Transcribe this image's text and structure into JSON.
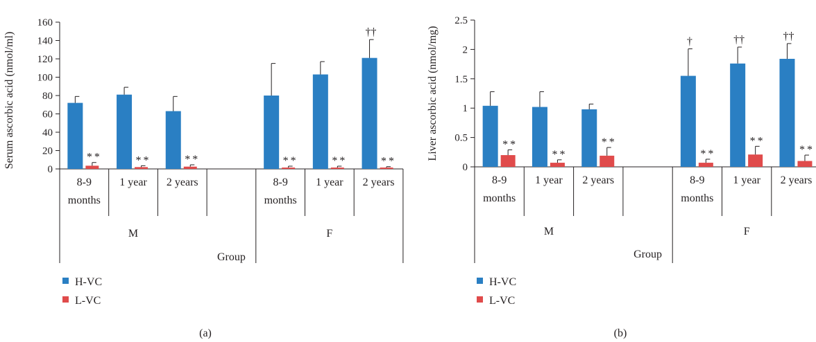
{
  "colors": {
    "hvc": "#2a7fc3",
    "lvc": "#e04b4b",
    "axis": "#231f20"
  },
  "chart_data": [
    {
      "panel_label": "(a)",
      "type": "bar",
      "ylabel": "Serum ascorbic acid (nmol/ml)",
      "xlabel": "Group",
      "ylim": [
        0,
        160
      ],
      "yticks": [
        "0",
        "20",
        "40",
        "60",
        "80",
        "100",
        "120",
        "140",
        "160"
      ],
      "ytick_values": [
        0,
        20,
        40,
        60,
        80,
        100,
        120,
        140,
        160
      ],
      "categories": [
        {
          "group": "M",
          "line1": "8-9",
          "line2": "months"
        },
        {
          "group": "M",
          "line1": "1 year",
          "line2": ""
        },
        {
          "group": "M",
          "line1": "2 years",
          "line2": ""
        },
        {
          "group": "",
          "line1": "",
          "line2": ""
        },
        {
          "group": "F",
          "line1": "8-9",
          "line2": "months"
        },
        {
          "group": "F",
          "line1": "1 year",
          "line2": ""
        },
        {
          "group": "F",
          "line1": "2 years",
          "line2": ""
        }
      ],
      "groups": [
        "M",
        "F"
      ],
      "series": [
        {
          "name": "H-VC",
          "values": [
            72,
            81,
            63,
            null,
            80,
            103,
            121
          ],
          "errors": [
            7,
            8,
            16,
            null,
            35,
            14,
            20
          ],
          "annotations": [
            "",
            "",
            "",
            "",
            "",
            "",
            "††"
          ]
        },
        {
          "name": "L-VC",
          "values": [
            3.5,
            2,
            2.5,
            null,
            1.5,
            1.5,
            1.5
          ],
          "errors": [
            3.5,
            1.5,
            2,
            null,
            1.5,
            1.5,
            1
          ],
          "annotations": [
            "**",
            "**",
            "**",
            "",
            "**",
            "**",
            "**"
          ]
        }
      ],
      "legend_position": "bottom-left"
    },
    {
      "panel_label": "(b)",
      "type": "bar",
      "ylabel": "Liver ascorbic acid (nmol/mg)",
      "xlabel": "Group",
      "ylim": [
        0,
        2.5
      ],
      "yticks": [
        "0",
        "0.5",
        "1",
        "1.5",
        "2",
        "2.5"
      ],
      "ytick_values": [
        0,
        0.5,
        1,
        1.5,
        2,
        2.5
      ],
      "categories": [
        {
          "group": "M",
          "line1": "8-9",
          "line2": "months"
        },
        {
          "group": "M",
          "line1": "1 year",
          "line2": ""
        },
        {
          "group": "M",
          "line1": "2 years",
          "line2": ""
        },
        {
          "group": "",
          "line1": "",
          "line2": ""
        },
        {
          "group": "F",
          "line1": "8-9",
          "line2": "months"
        },
        {
          "group": "F",
          "line1": "1 year",
          "line2": ""
        },
        {
          "group": "F",
          "line1": "2 years",
          "line2": ""
        }
      ],
      "groups": [
        "M",
        "F"
      ],
      "series": [
        {
          "name": "H-VC",
          "values": [
            1.04,
            1.02,
            0.98,
            null,
            1.55,
            1.76,
            1.84
          ],
          "errors": [
            0.24,
            0.26,
            0.09,
            null,
            0.46,
            0.28,
            0.26
          ],
          "annotations": [
            "",
            "",
            "",
            "",
            "†",
            "††",
            "††"
          ]
        },
        {
          "name": "L-VC",
          "values": [
            0.2,
            0.07,
            0.19,
            null,
            0.07,
            0.21,
            0.1
          ],
          "errors": [
            0.09,
            0.05,
            0.14,
            null,
            0.06,
            0.14,
            0.1
          ],
          "annotations": [
            "**",
            "**",
            "**",
            "",
            "**",
            "**",
            "**"
          ]
        }
      ],
      "legend_position": "bottom-left"
    }
  ]
}
